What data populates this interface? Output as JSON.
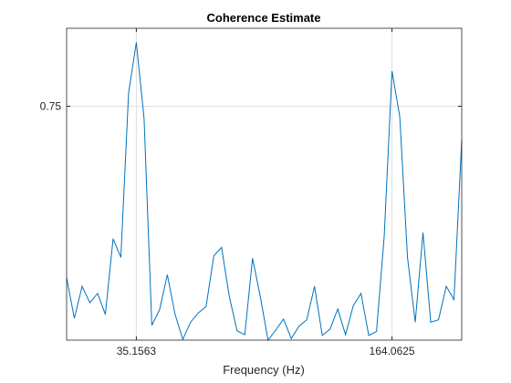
{
  "chart_data": {
    "type": "line",
    "title": "Coherence Estimate",
    "x_label": "Frequency (Hz)",
    "x": [
      0,
      3.90625,
      7.8125,
      11.71875,
      15.625,
      19.53125,
      23.4375,
      27.34375,
      31.25,
      35.15625,
      39.0625,
      42.96875,
      46.875,
      50.78125,
      54.6875,
      58.59375,
      62.5,
      66.40625,
      70.3125,
      74.21875,
      78.125,
      82.03125,
      85.9375,
      89.84375,
      93.75,
      97.65625,
      101.5625,
      105.46875,
      109.375,
      113.28125,
      117.1875,
      121.09375,
      125,
      128.90625,
      132.8125,
      136.71875,
      140.625,
      144.53125,
      148.4375,
      152.34375,
      156.25,
      160.15625,
      164.0625,
      167.96875,
      171.875,
      175.78125,
      179.6875,
      183.59375,
      187.5,
      191.40625,
      195.3125,
      199.21875
    ],
    "series": [
      {
        "color": "#0072bd",
        "values": [
          0.53,
          0.478,
          0.519,
          0.498,
          0.51,
          0.483,
          0.58,
          0.556,
          0.767,
          0.832,
          0.734,
          0.469,
          0.489,
          0.534,
          0.483,
          0.451,
          0.473,
          0.485,
          0.493,
          0.558,
          0.569,
          0.506,
          0.462,
          0.457,
          0.555,
          0.506,
          0.45,
          0.463,
          0.477,
          0.452,
          0.468,
          0.476,
          0.519,
          0.456,
          0.464,
          0.49,
          0.457,
          0.494,
          0.51,
          0.456,
          0.461,
          0.584,
          0.795,
          0.737,
          0.556,
          0.473,
          0.588,
          0.473,
          0.476,
          0.519,
          0.502,
          0.707
        ]
      }
    ],
    "xlim": [
      0,
      199.21875
    ],
    "ylim": [
      0.45,
      0.85
    ],
    "xticks": [
      35.1563,
      164.0625
    ],
    "yticks": [
      0.75
    ],
    "grid": true
  }
}
